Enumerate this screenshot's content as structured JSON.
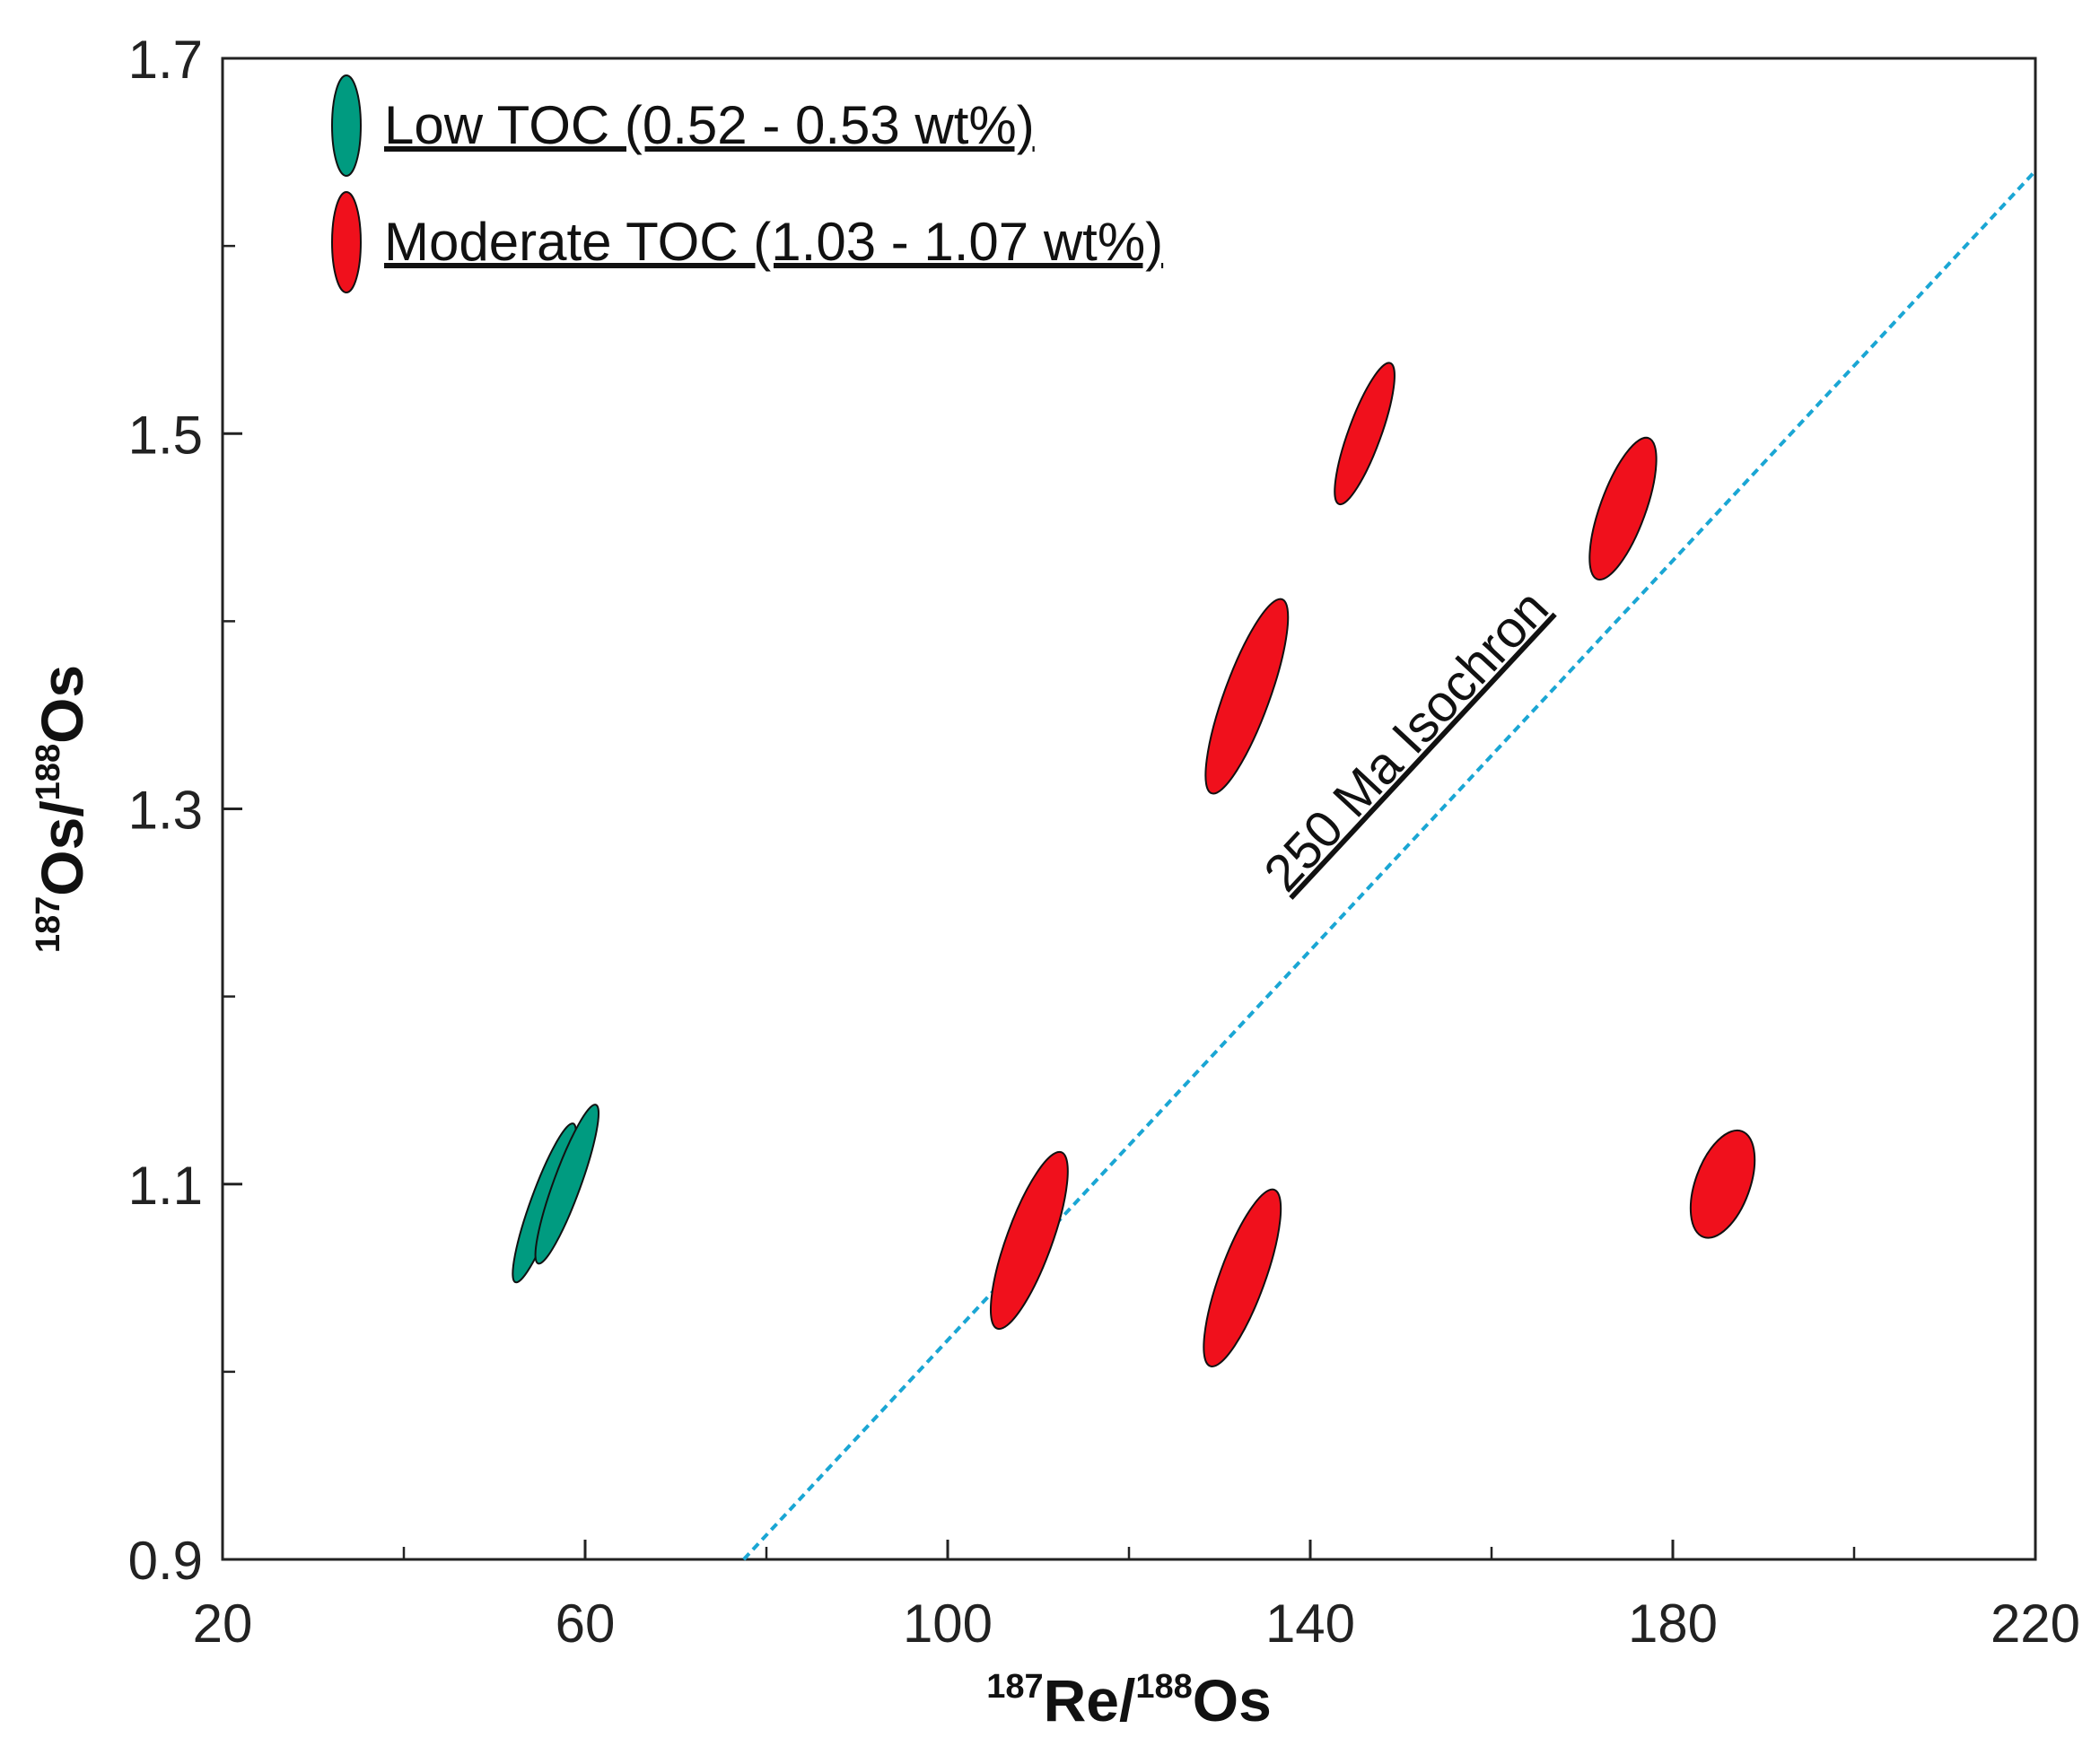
{
  "chart_data": {
    "type": "scatter",
    "title": "",
    "xlabel": {
      "sup1": "187",
      "main1": "Re/",
      "sup2": "188",
      "main2": "Os"
    },
    "ylabel": {
      "sup1": "187",
      "main1": "Os/",
      "sup2": "188",
      "main2": "Os"
    },
    "xlim": [
      20,
      220
    ],
    "ylim": [
      0.9,
      1.7
    ],
    "x_major_ticks": [
      20,
      60,
      100,
      140,
      180,
      220
    ],
    "x_minor_ticks": [
      40,
      80,
      120,
      160,
      200
    ],
    "y_major_ticks": [
      0.9,
      1.1,
      1.3,
      1.5,
      1.7
    ],
    "y_minor_ticks": [
      1.0,
      1.2,
      1.4,
      1.6
    ],
    "x_tick_labels": [
      "20",
      "60",
      "100",
      "140",
      "180",
      "220"
    ],
    "y_tick_labels": [
      "0.9",
      "1.1",
      "1.3",
      "1.5",
      "1.7"
    ],
    "grid": false,
    "legend_position": "top-left",
    "series": [
      {
        "name": "Low TOC (0.52 - 0.53 wt%)",
        "color": "#009b80",
        "points": [
          {
            "x": 55.5,
            "y": 1.09,
            "x_err": 1.5,
            "y_err": 0.045
          },
          {
            "x": 58.0,
            "y": 1.1,
            "x_err": 1.5,
            "y_err": 0.045
          }
        ]
      },
      {
        "name": "Moderate TOC (1.03 - 1.07 wt%)",
        "color": "#f0101c",
        "points": [
          {
            "x": 109.0,
            "y": 1.07,
            "x_err": 2.5,
            "y_err": 0.05
          },
          {
            "x": 132.5,
            "y": 1.05,
            "x_err": 2.5,
            "y_err": 0.05
          },
          {
            "x": 133.0,
            "y": 1.36,
            "x_err": 2.5,
            "y_err": 0.055
          },
          {
            "x": 146.0,
            "y": 1.5,
            "x_err": 1.8,
            "y_err": 0.04
          },
          {
            "x": 174.5,
            "y": 1.46,
            "x_err": 2.5,
            "y_err": 0.04
          },
          {
            "x": 185.5,
            "y": 1.1,
            "x_err": 3.0,
            "y_err": 0.03
          }
        ]
      }
    ],
    "isochron": {
      "label": "250 Ma Isochron",
      "color": "#1aa6d4",
      "x1": 77.5,
      "y1": 0.9,
      "x2": 220,
      "y2": 1.64
    }
  }
}
